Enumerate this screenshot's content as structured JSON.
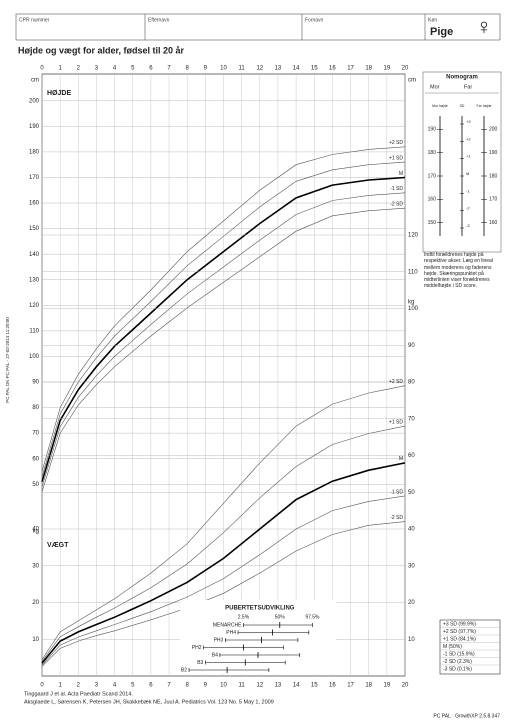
{
  "header": {
    "cpr": "CPR nummer",
    "surname": "Efternavn",
    "firstname": "Fornavn",
    "sex_label": "Køn",
    "sex": "Pige",
    "sex_symbol": "♀"
  },
  "title": "Højde og vægt for alder, fødsel til 20 år",
  "chart_data": [
    {
      "type": "line",
      "title": "HØJDE",
      "y_label": "cm",
      "xlim": [
        0,
        20
      ],
      "xticks": [
        0,
        1,
        2,
        3,
        4,
        5,
        6,
        7,
        8,
        9,
        10,
        11,
        12,
        13,
        14,
        15,
        16,
        17,
        18,
        19,
        20
      ],
      "ylim": [
        -25,
        205
      ],
      "yticks": [
        50,
        60,
        70,
        80,
        90,
        100,
        110,
        120,
        130,
        140,
        150,
        160,
        170,
        180,
        190,
        200
      ],
      "grid": true,
      "x": [
        0,
        1,
        2,
        3,
        4,
        6,
        8,
        10,
        12,
        14,
        16,
        18,
        20
      ],
      "series": [
        {
          "name": "+2 SD",
          "color": "#555555",
          "values": [
            55,
            80,
            93,
            103,
            112,
            126,
            141,
            153,
            165,
            175,
            179,
            181,
            182
          ]
        },
        {
          "name": "+1 SD",
          "color": "#555555",
          "values": [
            53,
            77.5,
            90,
            99.5,
            108,
            121.5,
            135.5,
            147,
            158.5,
            168.5,
            173,
            175,
            176
          ]
        },
        {
          "name": "M",
          "color": "#000000",
          "values": [
            51,
            75,
            87,
            96,
            104,
            117,
            130,
            141,
            152,
            162,
            167,
            169,
            170
          ]
        },
        {
          "name": "-1 SD",
          "color": "#555555",
          "values": [
            49,
            72.5,
            84,
            92.5,
            100,
            112.5,
            124.5,
            135,
            145.5,
            155.5,
            161,
            163,
            164
          ]
        },
        {
          "name": "-2 SD",
          "color": "#555555",
          "values": [
            47,
            70,
            81,
            89,
            96,
            108,
            119,
            129,
            139,
            149,
            155,
            157,
            158
          ]
        }
      ]
    },
    {
      "type": "line",
      "title": "VÆGT",
      "y_label": "kg",
      "ylim": [
        0,
        160
      ],
      "yticks": [
        10,
        20,
        30,
        40,
        50,
        60,
        70,
        80,
        90,
        100,
        110,
        120
      ],
      "grid": true,
      "x": [
        0,
        1,
        2,
        3,
        4,
        6,
        8,
        10,
        12,
        14,
        16,
        18,
        20
      ],
      "series": [
        {
          "name": "+2 SD",
          "color": "#555555",
          "values": [
            4.5,
            12,
            15,
            18,
            21,
            28,
            36,
            47,
            58,
            68,
            74,
            77,
            79
          ]
        },
        {
          "name": "+1 SD",
          "color": "#555555",
          "values": [
            4,
            10.7,
            13.4,
            16,
            18.5,
            24,
            30.5,
            39,
            48.5,
            57,
            63,
            66,
            68
          ]
        },
        {
          "name": "M",
          "color": "#000000",
          "values": [
            3.5,
            9.5,
            12,
            14,
            16,
            20.5,
            25.5,
            32,
            40,
            48,
            53,
            56,
            58
          ]
        },
        {
          "name": "-1 SD",
          "color": "#555555",
          "values": [
            3,
            8.4,
            10.6,
            12.3,
            14,
            17.5,
            21.5,
            26.5,
            33,
            40,
            45,
            47.5,
            49
          ]
        },
        {
          "name": "-2 SD",
          "color": "#555555",
          "values": [
            2.6,
            7.5,
            9.5,
            11,
            12.3,
            15.3,
            18.5,
            22.5,
            28,
            34,
            38.5,
            41,
            42
          ]
        }
      ]
    }
  ],
  "puberty": {
    "title": "PUBERTETSUDVIKLING",
    "percent_labels": [
      "2.5%",
      "50%",
      "97.5%"
    ],
    "rows": [
      {
        "name": "MENARCHE",
        "values": [
          11.1,
          13.1,
          14.9
        ]
      },
      {
        "name": "PH4",
        "values": [
          10.8,
          12.7,
          14.7
        ]
      },
      {
        "name": "PH3",
        "values": [
          10.1,
          12.1,
          14.1
        ]
      },
      {
        "name": "PH2",
        "values": [
          8.9,
          11.1,
          13.3
        ]
      },
      {
        "name": "B4",
        "values": [
          9.8,
          11.9,
          14.2
        ]
      },
      {
        "name": "B3",
        "values": [
          9.0,
          11.2,
          13.4
        ]
      },
      {
        "name": "B2",
        "values": [
          8.1,
          10.2,
          12.5
        ]
      }
    ]
  },
  "nomogram": {
    "title": "Nomogram",
    "mother": "Mor",
    "father": "Far",
    "mother_axis": "Mor højde",
    "sd_axis": "SD",
    "father_axis": "Far højde",
    "mother_lim": [
      146,
      194
    ],
    "mother_ticks": [
      150,
      160,
      170,
      180,
      190
    ],
    "father_lim": [
      156,
      204
    ],
    "father_ticks": [
      160,
      170,
      180,
      190,
      200
    ],
    "sd_ticks": [
      "+3",
      "+2",
      "+1",
      "M",
      "-1",
      "-2",
      "-3"
    ],
    "text": "Indtil forældrenes højde på respektive akser. Læg en lineal mellem moderens og faderens højde. Skæringspunktet på midterlinien viser forældrenes middelhøjde i SD score."
  },
  "sd_legend": [
    "+3 SD (99.9%)",
    "+2 SD (97.7%)",
    "+1 SD (84.1%)",
    "M (50%)",
    "-1 SD (15.9%)",
    "-2 SD (2.3%)",
    "-3 SD (0.1%)"
  ],
  "side_text": "PC PAL DK-PC PAL - 27-02-2014 11:20:00",
  "footer": {
    "ref1": "Tinggaard J et al. Acta Paediatr Scand 2014.",
    "ref2": "Aksglaede L, Sørensen K, Petersen JH, Skakkebæk NE, Juul A. Pediatrics Vol. 123 No. 5 May 1, 2009",
    "software": "PC PAL · GrowthXP 2.5.8.347"
  }
}
